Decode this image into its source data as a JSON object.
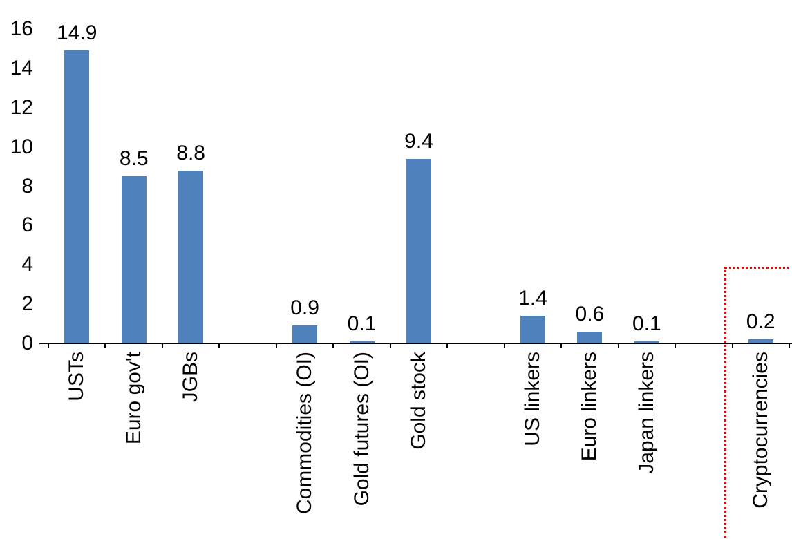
{
  "chart_data": {
    "type": "bar",
    "title": "",
    "xlabel": "",
    "ylabel": "",
    "ylim": [
      0,
      16
    ],
    "yticks": [
      0,
      2,
      4,
      6,
      8,
      10,
      12,
      14,
      16
    ],
    "grid": false,
    "legend": false,
    "bar_color": "#4F81BD",
    "axis_color": "#000000",
    "highlight_box_color": "#FF0000",
    "slot_count": 13,
    "categories": [
      "USTs",
      "Euro gov't",
      "JGBs",
      "Commodities (OI)",
      "Gold futures (OI)",
      "Gold stock",
      "US linkers",
      "Euro linkers",
      "Japan linkers",
      "Cryptocurrencies"
    ],
    "values": [
      14.9,
      8.5,
      8.8,
      0.9,
      0.1,
      9.4,
      1.4,
      0.6,
      0.1,
      0.2
    ],
    "highlighted_category": "Cryptocurrencies",
    "bars": [
      {
        "label": "USTs",
        "value": 14.9,
        "display": "14.9",
        "slot": 0,
        "highlighted": false
      },
      {
        "label": "Euro gov't",
        "value": 8.5,
        "display": "8.5",
        "slot": 1,
        "highlighted": false
      },
      {
        "label": "JGBs",
        "value": 8.8,
        "display": "8.8",
        "slot": 2,
        "highlighted": false
      },
      {
        "label": "Commodities (OI)",
        "value": 0.9,
        "display": "0.9",
        "slot": 4,
        "highlighted": false
      },
      {
        "label": "Gold futures (OI)",
        "value": 0.1,
        "display": "0.1",
        "slot": 5,
        "highlighted": false
      },
      {
        "label": "Gold stock",
        "value": 9.4,
        "display": "9.4",
        "slot": 6,
        "highlighted": false
      },
      {
        "label": "US linkers",
        "value": 1.4,
        "display": "1.4",
        "slot": 8,
        "highlighted": false
      },
      {
        "label": "Euro linkers",
        "value": 0.6,
        "display": "0.6",
        "slot": 9,
        "highlighted": false
      },
      {
        "label": "Japan linkers",
        "value": 0.1,
        "display": "0.1",
        "slot": 10,
        "highlighted": false
      },
      {
        "label": "Cryptocurrencies",
        "value": 0.2,
        "display": "0.2",
        "slot": 12,
        "highlighted": true
      }
    ]
  }
}
